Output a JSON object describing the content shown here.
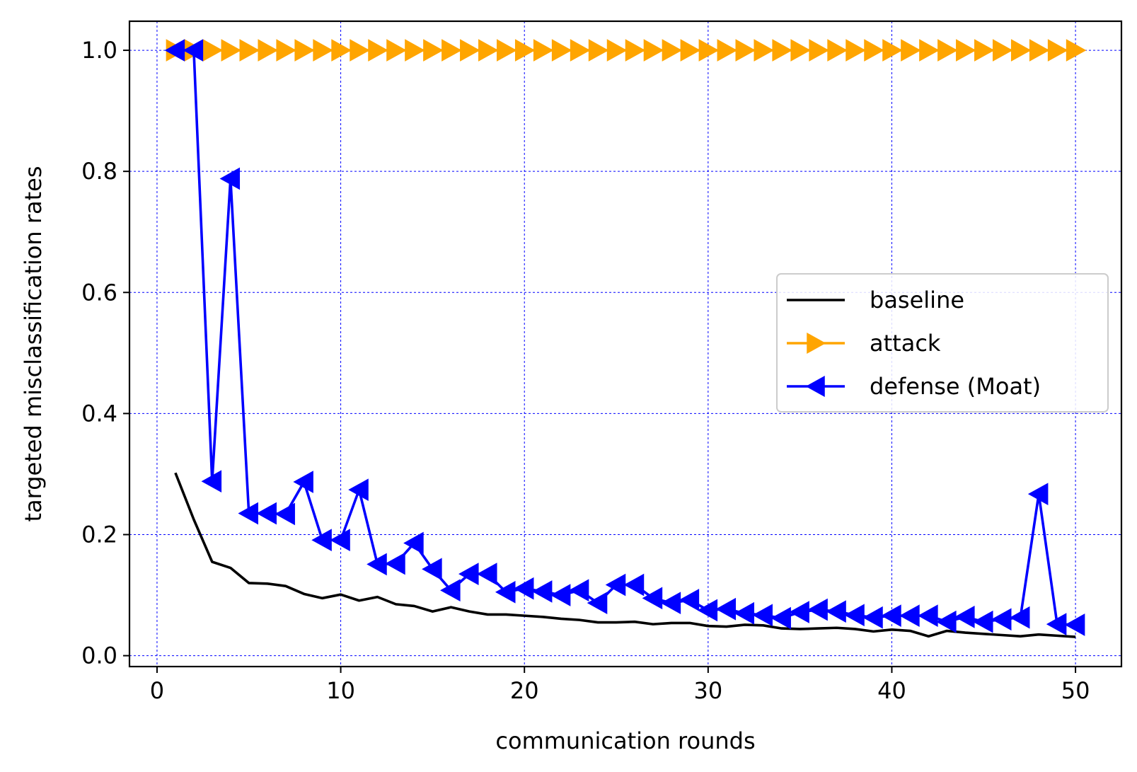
{
  "chart_data": {
    "type": "line",
    "title": "",
    "xlabel": "communication rounds",
    "ylabel": "targeted misclassification rates",
    "xlim": [
      -1.5,
      52.5
    ],
    "ylim": [
      -0.018,
      1.048
    ],
    "xticks": [
      0,
      10,
      20,
      30,
      40,
      50
    ],
    "xtick_labels": [
      "0",
      "10",
      "20",
      "30",
      "40",
      "50"
    ],
    "yticks": [
      0.0,
      0.2,
      0.4,
      0.6,
      0.8,
      1.0
    ],
    "ytick_labels": [
      "0.0",
      "0.2",
      "0.4",
      "0.6",
      "0.8",
      "1.0"
    ],
    "grid": true,
    "legend_position": "center-right",
    "x": [
      1,
      2,
      3,
      4,
      5,
      6,
      7,
      8,
      9,
      10,
      11,
      12,
      13,
      14,
      15,
      16,
      17,
      18,
      19,
      20,
      21,
      22,
      23,
      24,
      25,
      26,
      27,
      28,
      29,
      30,
      31,
      32,
      33,
      34,
      35,
      36,
      37,
      38,
      39,
      40,
      41,
      42,
      43,
      44,
      45,
      46,
      47,
      48,
      49,
      50
    ],
    "series": [
      {
        "name": "baseline",
        "color": "#000000",
        "marker": "none",
        "values": [
          0.302,
          0.225,
          0.155,
          0.145,
          0.12,
          0.119,
          0.115,
          0.102,
          0.095,
          0.101,
          0.091,
          0.097,
          0.085,
          0.082,
          0.073,
          0.08,
          0.073,
          0.068,
          0.068,
          0.066,
          0.064,
          0.061,
          0.059,
          0.055,
          0.055,
          0.056,
          0.052,
          0.054,
          0.054,
          0.049,
          0.048,
          0.051,
          0.05,
          0.045,
          0.044,
          0.045,
          0.046,
          0.044,
          0.04,
          0.043,
          0.041,
          0.032,
          0.041,
          0.038,
          0.036,
          0.034,
          0.032,
          0.035,
          0.033,
          0.031
        ]
      },
      {
        "name": "attack",
        "color": "#ffa500",
        "marker": "triangle-right",
        "values": [
          1,
          1,
          1,
          1,
          1,
          1,
          1,
          1,
          1,
          1,
          1,
          1,
          1,
          1,
          1,
          1,
          1,
          1,
          1,
          1,
          1,
          1,
          1,
          1,
          1,
          1,
          1,
          1,
          1,
          1,
          1,
          1,
          1,
          1,
          1,
          1,
          1,
          1,
          1,
          1,
          1,
          1,
          1,
          1,
          1,
          1,
          1,
          1,
          1,
          1
        ]
      },
      {
        "name": "defense (Moat)",
        "color": "#0000ff",
        "marker": "triangle-left",
        "values": [
          1.0,
          1.0,
          0.288,
          0.788,
          0.235,
          0.235,
          0.234,
          0.287,
          0.191,
          0.191,
          0.274,
          0.151,
          0.152,
          0.186,
          0.143,
          0.108,
          0.135,
          0.135,
          0.105,
          0.111,
          0.106,
          0.1,
          0.108,
          0.087,
          0.117,
          0.117,
          0.095,
          0.087,
          0.092,
          0.075,
          0.077,
          0.07,
          0.067,
          0.062,
          0.072,
          0.076,
          0.073,
          0.067,
          0.063,
          0.066,
          0.066,
          0.066,
          0.056,
          0.064,
          0.056,
          0.06,
          0.063,
          0.267,
          0.052,
          0.051
        ]
      }
    ]
  }
}
